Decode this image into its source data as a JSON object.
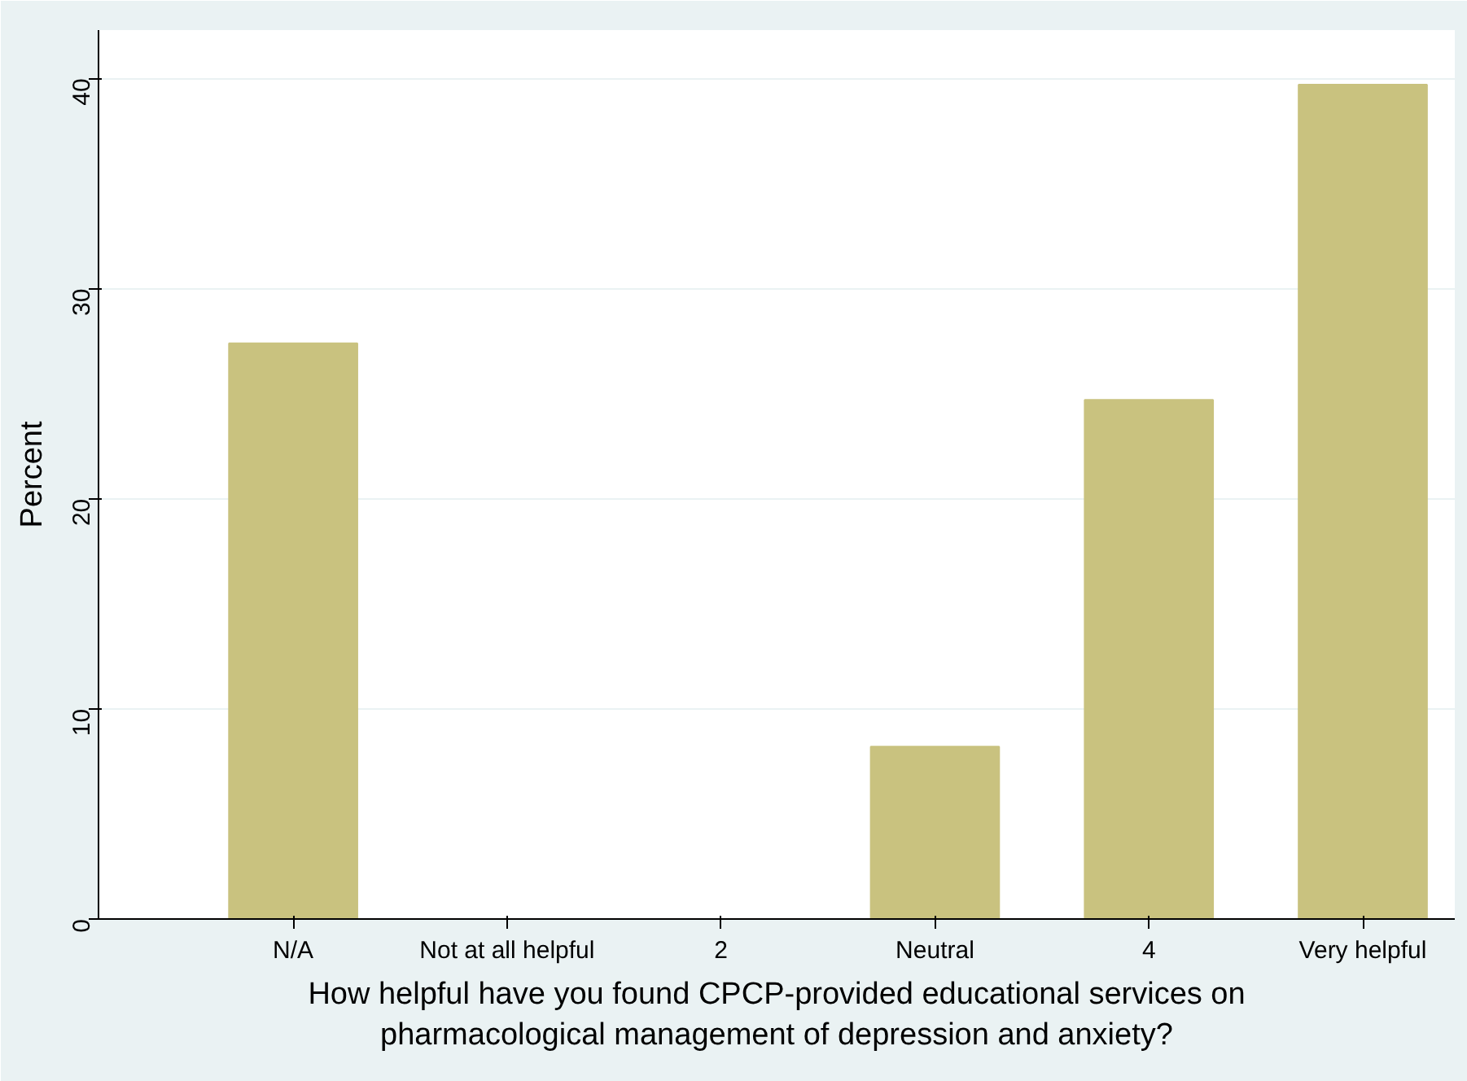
{
  "chart_data": {
    "type": "bar",
    "xlabel": "How helpful have you found CPCP-provided educational services on\npharmacological management of depression and anxiety?",
    "ylabel": "Percent",
    "categories": [
      "N/A",
      "Not at all helpful",
      "2",
      "Neutral",
      "4",
      "Very helpful"
    ],
    "values": [
      27.4,
      0,
      0,
      8.2,
      24.7,
      39.7
    ],
    "color": "#c9c27f",
    "ylim": [
      0,
      42.3
    ],
    "yticks": [
      0,
      10,
      20,
      30,
      40
    ],
    "grid": "y"
  }
}
